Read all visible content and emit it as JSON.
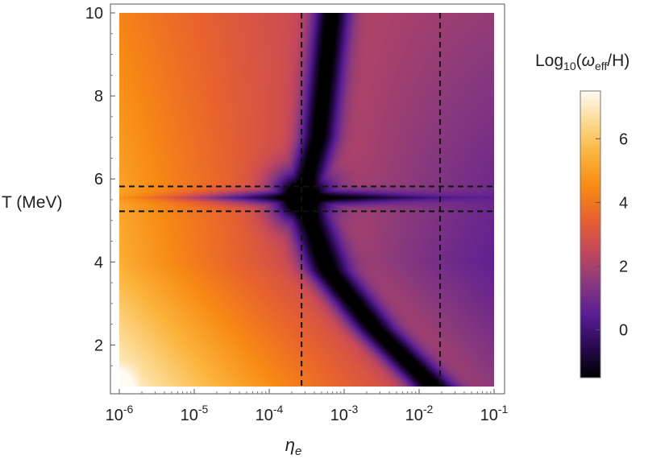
{
  "chart_data": {
    "type": "heatmap",
    "title": "",
    "xlabel": "η",
    "xlabel_sub": "e",
    "ylabel": "T (MeV)",
    "x_scale": "log",
    "xlim": [
      1e-06,
      0.1
    ],
    "ylim": [
      1,
      10
    ],
    "x_ticks": [
      1e-06,
      1e-05,
      0.0001,
      0.001,
      0.01,
      0.1
    ],
    "x_tick_labels": [
      {
        "base": "10",
        "exp": "-6"
      },
      {
        "base": "10",
        "exp": "-5"
      },
      {
        "base": "10",
        "exp": "-4"
      },
      {
        "base": "10",
        "exp": "-3"
      },
      {
        "base": "10",
        "exp": "-2"
      },
      {
        "base": "10",
        "exp": "-1"
      }
    ],
    "y_ticks": [
      2,
      4,
      6,
      8,
      10
    ],
    "y_tick_labels": [
      "2",
      "4",
      "6",
      "8",
      "10"
    ],
    "colorbar": {
      "title_prefix": "Log",
      "title_sub": "10",
      "title_open": "(",
      "title_omega": "ω",
      "title_omega_sub": "eff",
      "title_close": "/H)",
      "range": [
        -1.5,
        7.5
      ],
      "ticks": [
        0,
        2,
        4,
        6
      ],
      "tick_labels": [
        "0",
        "2",
        "4",
        "6"
      ],
      "colormap": [
        "#000000",
        "#2a0a52",
        "#5a1e94",
        "#8a3a7c",
        "#c5485a",
        "#e8622e",
        "#f78a14",
        "#fbb33a",
        "#fcd88e",
        "#fffaf4"
      ]
    },
    "dashed_lines": {
      "vertical_eta": [
        0.00027,
        0.019
      ],
      "horizontal_T": [
        5.22,
        5.82
      ]
    },
    "valley": {
      "center": {
        "eta": 0.00027,
        "T": 5.55
      },
      "branches": [
        {
          "name": "upper",
          "points": [
            [
              0.00027,
              5.55
            ],
            [
              0.00045,
              7.0
            ],
            [
              0.00068,
              10.0
            ]
          ]
        },
        {
          "name": "lower",
          "points": [
            [
              0.00027,
              5.55
            ],
            [
              0.0006,
              3.8
            ],
            [
              0.0025,
              2.4
            ],
            [
              0.015,
              1.0
            ]
          ]
        },
        {
          "name": "left",
          "points": [
            [
              0.00027,
              5.55
            ],
            [
              1e-06,
              5.55
            ]
          ]
        },
        {
          "name": "right",
          "points": [
            [
              0.00027,
              5.55
            ],
            [
              0.1,
              5.55
            ]
          ]
        }
      ]
    }
  }
}
